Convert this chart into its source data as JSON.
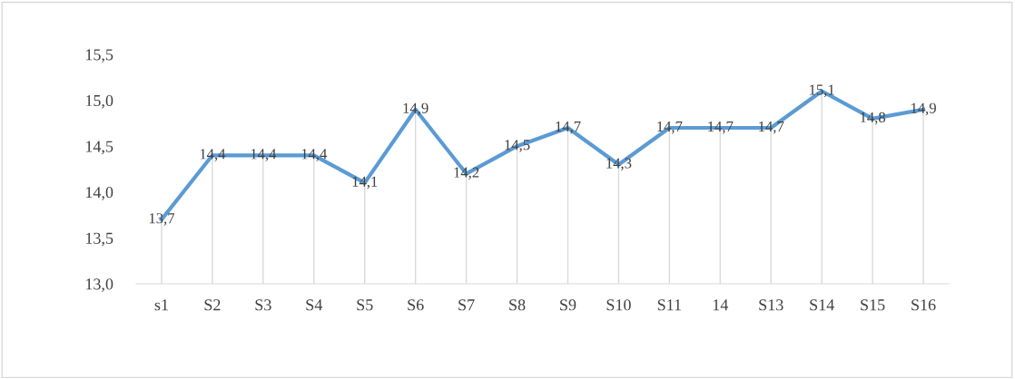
{
  "chart_data": {
    "type": "line",
    "categories": [
      "s1",
      "S2",
      "S3",
      "S4",
      "S5",
      "S6",
      "S7",
      "S8",
      "S9",
      "S10",
      "S11",
      "14",
      "S13",
      "S14",
      "S15",
      "S16"
    ],
    "series": [
      {
        "color": "#5b9bd5",
        "values": [
          13.7,
          14.4,
          14.4,
          14.4,
          14.1,
          14.9,
          14.2,
          14.5,
          14.7,
          14.3,
          14.7,
          14.7,
          14.7,
          15.1,
          14.8,
          14.9
        ],
        "value_labels": [
          "13,7",
          "14,4",
          "14,4",
          "14,4",
          "14,1",
          "14,9",
          "14,2",
          "14,5",
          "14,7",
          "14,3",
          "14,7",
          "14,7",
          "14,7",
          "15,1",
          "14,8",
          "14,9"
        ]
      }
    ],
    "ylim": [
      13.0,
      15.5
    ],
    "yticks": [
      {
        "value": 13.0,
        "label": "13,0"
      },
      {
        "value": 13.5,
        "label": "13,5"
      },
      {
        "value": 14.0,
        "label": "14,0"
      },
      {
        "value": 14.5,
        "label": "14,5"
      },
      {
        "value": 15.0,
        "label": "15,0"
      },
      {
        "value": 15.5,
        "label": "15,5"
      }
    ],
    "grid": "x",
    "marker": "none",
    "line_style": "solid"
  }
}
